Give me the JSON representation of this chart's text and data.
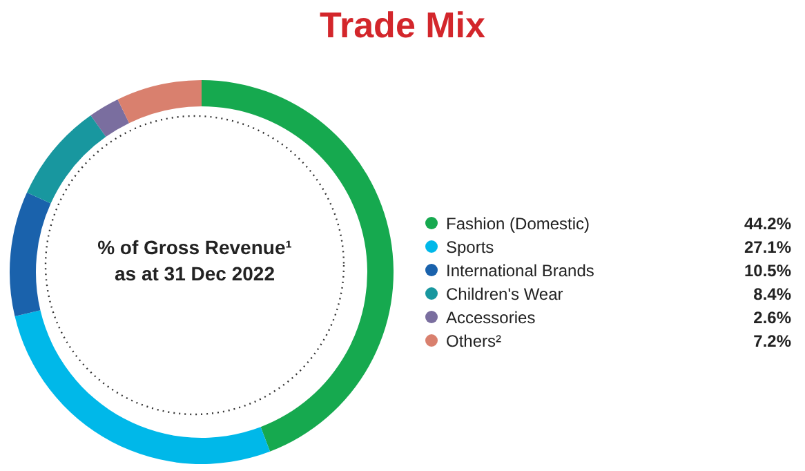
{
  "chart_data": {
    "type": "donut",
    "title": "Trade Mix",
    "categories": [
      "Fashion (Domestic)",
      "Sports",
      "International Brands",
      "Children's Wear",
      "Accessories",
      "Others²"
    ],
    "values": [
      44.2,
      27.1,
      10.5,
      8.4,
      2.6,
      7.2
    ],
    "colors": [
      "#16a94f",
      "#00b8e9",
      "#1a62ac",
      "#18979f",
      "#7a6e9f",
      "#d9806e"
    ],
    "value_labels": [
      "44.2%",
      "27.1%",
      "10.5%",
      "8.4%",
      "2.6%",
      "7.2%"
    ],
    "annotations": [
      "% of Gross Revenue¹ as at 31 Dec 2022"
    ],
    "legend": "right"
  }
}
